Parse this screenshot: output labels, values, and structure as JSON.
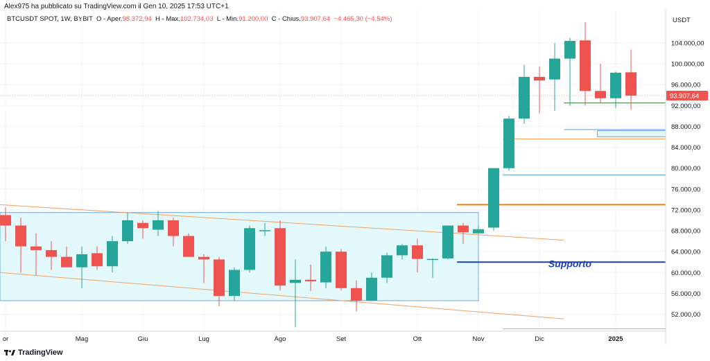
{
  "header": {
    "published": "Alex975 ha pubblicato su TradingView.com il Gen 10, 2025 17:53 UTC+1"
  },
  "legend": {
    "symbol": "BTCUSDT SPOT, 1W, BYBIT",
    "open_label": "O - Aper.",
    "open_value": "98.372,94",
    "high_label": "H - Max.",
    "high_value": "102.734,03",
    "low_label": "L - Min.",
    "low_value": "91.200,00",
    "close_label": "C - Chius.",
    "close_value": "93.907,64",
    "change_value": "−4.465,30 (−4,54%)"
  },
  "footer": {
    "brand": "TradingView"
  },
  "colors": {
    "up": "#26a69a",
    "down": "#ef5350",
    "channel": "#f0a060",
    "support": "#1e40af",
    "resistance": "#f57c00",
    "blue_line": "#5b9bd5",
    "box_fill": "#e0f7fa",
    "box_stroke": "#6fa8dc",
    "green_line": "#2e7d32"
  },
  "chart_data": {
    "type": "candlestick",
    "price_axis_label": "USDT",
    "y_ticks": [
      52000,
      56000,
      60000,
      64000,
      68000,
      72000,
      76000,
      80000,
      84000,
      88000,
      92000,
      96000,
      100000,
      104000
    ],
    "y_tick_labels": [
      "52.000,00",
      "56.000,00",
      "60.000,00",
      "64.000,00",
      "68.000,00",
      "72.000,00",
      "76.000,00",
      "80.000,00",
      "84.000,00",
      "88.000,00",
      "92.000,00",
      "96.000,00",
      "100.000,00",
      "104.000,00"
    ],
    "ylim": [
      48500,
      109000
    ],
    "x_labels": [
      {
        "label": "or",
        "index": 0,
        "bold": false
      },
      {
        "label": "Mag",
        "index": 5,
        "bold": false
      },
      {
        "label": "Giu",
        "index": 9,
        "bold": false
      },
      {
        "label": "Lug",
        "index": 13,
        "bold": false
      },
      {
        "label": "Ago",
        "index": 18,
        "bold": false
      },
      {
        "label": "Set",
        "index": 22,
        "bold": false
      },
      {
        "label": "Ott",
        "index": 27,
        "bold": false
      },
      {
        "label": "Nov",
        "index": 31,
        "bold": false
      },
      {
        "label": "Dic",
        "index": 35,
        "bold": false
      },
      {
        "label": "2025",
        "index": 40,
        "bold": true
      }
    ],
    "last_price_label": "93.907,64",
    "last_price": 93907.64,
    "candles": [
      {
        "o": 71000,
        "h": 72500,
        "l": 66000,
        "c": 69000
      },
      {
        "o": 69000,
        "h": 70500,
        "l": 60000,
        "c": 65000
      },
      {
        "o": 65000,
        "h": 67500,
        "l": 59500,
        "c": 64300
      },
      {
        "o": 64300,
        "h": 66000,
        "l": 60500,
        "c": 63000
      },
      {
        "o": 63000,
        "h": 65000,
        "l": 61000,
        "c": 61000
      },
      {
        "o": 61000,
        "h": 65000,
        "l": 57000,
        "c": 63500
      },
      {
        "o": 63700,
        "h": 65000,
        "l": 60500,
        "c": 61200
      },
      {
        "o": 61200,
        "h": 67000,
        "l": 60000,
        "c": 66000
      },
      {
        "o": 66000,
        "h": 71500,
        "l": 65500,
        "c": 70000
      },
      {
        "o": 69500,
        "h": 70000,
        "l": 66500,
        "c": 68500
      },
      {
        "o": 68200,
        "h": 71800,
        "l": 67000,
        "c": 70000
      },
      {
        "o": 70000,
        "h": 70500,
        "l": 65000,
        "c": 67000
      },
      {
        "o": 67000,
        "h": 67500,
        "l": 63000,
        "c": 63000
      },
      {
        "o": 63000,
        "h": 63500,
        "l": 58000,
        "c": 62500
      },
      {
        "o": 62500,
        "h": 63000,
        "l": 53500,
        "c": 55500
      },
      {
        "o": 55500,
        "h": 61000,
        "l": 54500,
        "c": 60500
      },
      {
        "o": 60500,
        "h": 69000,
        "l": 60000,
        "c": 68500
      },
      {
        "o": 68000,
        "h": 69500,
        "l": 67000,
        "c": 68100
      },
      {
        "o": 68500,
        "h": 70000,
        "l": 56500,
        "c": 57500
      },
      {
        "o": 58000,
        "h": 62500,
        "l": 49500,
        "c": 58600
      },
      {
        "o": 58600,
        "h": 61500,
        "l": 56500,
        "c": 58300
      },
      {
        "o": 58100,
        "h": 65000,
        "l": 57000,
        "c": 64000
      },
      {
        "o": 64000,
        "h": 64500,
        "l": 56500,
        "c": 57000
      },
      {
        "o": 57000,
        "h": 58500,
        "l": 52500,
        "c": 54600
      },
      {
        "o": 54600,
        "h": 60000,
        "l": 54500,
        "c": 59000
      },
      {
        "o": 59000,
        "h": 63800,
        "l": 58000,
        "c": 63300
      },
      {
        "o": 63300,
        "h": 65500,
        "l": 62500,
        "c": 65200
      },
      {
        "o": 65200,
        "h": 66500,
        "l": 60000,
        "c": 62600
      },
      {
        "o": 62600,
        "h": 62700,
        "l": 59000,
        "c": 62600
      },
      {
        "o": 62700,
        "h": 69000,
        "l": 62500,
        "c": 69000
      },
      {
        "o": 69000,
        "h": 69500,
        "l": 65500,
        "c": 67700
      },
      {
        "o": 67500,
        "h": 69000,
        "l": 67500,
        "c": 68300
      },
      {
        "o": 68600,
        "h": 80000,
        "l": 68000,
        "c": 80000
      },
      {
        "o": 80000,
        "h": 90000,
        "l": 79500,
        "c": 89500
      },
      {
        "o": 89500,
        "h": 99800,
        "l": 88500,
        "c": 97500
      },
      {
        "o": 97500,
        "h": 99500,
        "l": 90500,
        "c": 96800
      },
      {
        "o": 97000,
        "h": 104000,
        "l": 91000,
        "c": 101000
      },
      {
        "o": 101000,
        "h": 105000,
        "l": 92000,
        "c": 104400
      },
      {
        "o": 104500,
        "h": 108000,
        "l": 92000,
        "c": 94800
      },
      {
        "o": 94800,
        "h": 100000,
        "l": 92500,
        "c": 93400
      },
      {
        "o": 93400,
        "h": 98500,
        "l": 91500,
        "c": 98300
      },
      {
        "o": 98373,
        "h": 102734,
        "l": 91200,
        "c": 93908
      }
    ],
    "annotations": [
      {
        "type": "text",
        "label": "Supporto",
        "index": 37,
        "y": 61000
      }
    ]
  }
}
